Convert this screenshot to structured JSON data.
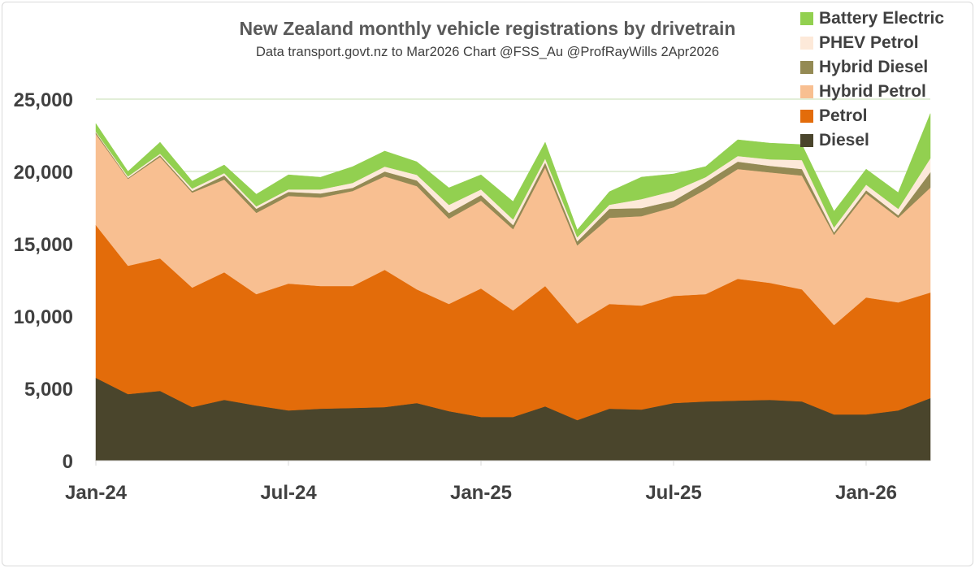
{
  "chart_data": {
    "type": "area",
    "stacked": true,
    "title": "New Zealand monthly vehicle registrations by drivetrain",
    "subtitle": "Data transport.govt.nz to Mar2026 Chart @FSS_Au @ProfRayWills 2Apr2026",
    "xlabel": "",
    "ylabel": "",
    "ylim": [
      0,
      25000
    ],
    "yticks": [
      "0",
      "5,000",
      "10,000",
      "15,000",
      "20,000",
      "25,000"
    ],
    "xticks": [
      {
        "label": "Jan-24",
        "index": 0
      },
      {
        "label": "Jul-24",
        "index": 6
      },
      {
        "label": "Jan-25",
        "index": 12
      },
      {
        "label": "Jul-25",
        "index": 18
      },
      {
        "label": "Jan-26",
        "index": 24
      }
    ],
    "x": [
      "Jan-24",
      "Feb-24",
      "Mar-24",
      "Apr-24",
      "May-24",
      "Jun-24",
      "Jul-24",
      "Aug-24",
      "Sep-24",
      "Oct-24",
      "Nov-24",
      "Dec-24",
      "Jan-25",
      "Feb-25",
      "Mar-25",
      "Apr-25",
      "May-25",
      "Jun-25",
      "Jul-25",
      "Aug-25",
      "Sep-25",
      "Oct-25",
      "Nov-25",
      "Dec-25",
      "Jan-26",
      "Feb-26",
      "Mar-26"
    ],
    "grid": true,
    "legend_position": "top-right",
    "series": [
      {
        "name": "Diesel",
        "color": "#4a452c",
        "values": [
          5730,
          4610,
          4830,
          3710,
          4210,
          3820,
          3480,
          3600,
          3650,
          3710,
          3990,
          3430,
          3030,
          3030,
          3760,
          2810,
          3600,
          3540,
          3990,
          4100,
          4160,
          4210,
          4100,
          3200,
          3200,
          3480,
          4330
        ]
      },
      {
        "name": "Petrol",
        "color": "#e36c0a",
        "values": [
          10560,
          8870,
          9160,
          8260,
          8820,
          7700,
          8770,
          8480,
          8430,
          9490,
          7860,
          7410,
          8880,
          7360,
          8320,
          6680,
          7240,
          7190,
          7410,
          7420,
          8420,
          8090,
          7750,
          6180,
          8090,
          7470,
          7300
        ]
      },
      {
        "name": "Hybrid Petrol",
        "color": "#f8bf91",
        "values": [
          6290,
          6010,
          7020,
          6570,
          6410,
          5620,
          6060,
          6120,
          6570,
          6460,
          7140,
          5900,
          6070,
          5620,
          8200,
          5400,
          5960,
          6180,
          6130,
          7240,
          7590,
          7640,
          7870,
          6240,
          7190,
          5850,
          7250
        ]
      },
      {
        "name": "Hybrid Diesel",
        "color": "#948a54",
        "values": [
          110,
          60,
          110,
          110,
          280,
          280,
          280,
          280,
          220,
          340,
          390,
          390,
          390,
          280,
          340,
          280,
          620,
          560,
          450,
          510,
          510,
          450,
          450,
          170,
          220,
          170,
          1070
        ]
      },
      {
        "name": "PHEV Petrol",
        "color": "#fde9d9",
        "values": [
          60,
          110,
          110,
          170,
          170,
          170,
          170,
          280,
          340,
          340,
          390,
          560,
          390,
          390,
          280,
          280,
          280,
          620,
          670,
          340,
          390,
          450,
          620,
          340,
          390,
          450,
          960
        ]
      },
      {
        "name": "Battery Electric",
        "color": "#92d050",
        "values": [
          560,
          340,
          790,
          510,
          560,
          840,
          1010,
          840,
          1120,
          1070,
          900,
          1180,
          1010,
          1240,
          1120,
          510,
          900,
          1520,
          1180,
          730,
          1120,
          1120,
          1070,
          1120,
          1070,
          1120,
          3090
        ]
      }
    ]
  }
}
